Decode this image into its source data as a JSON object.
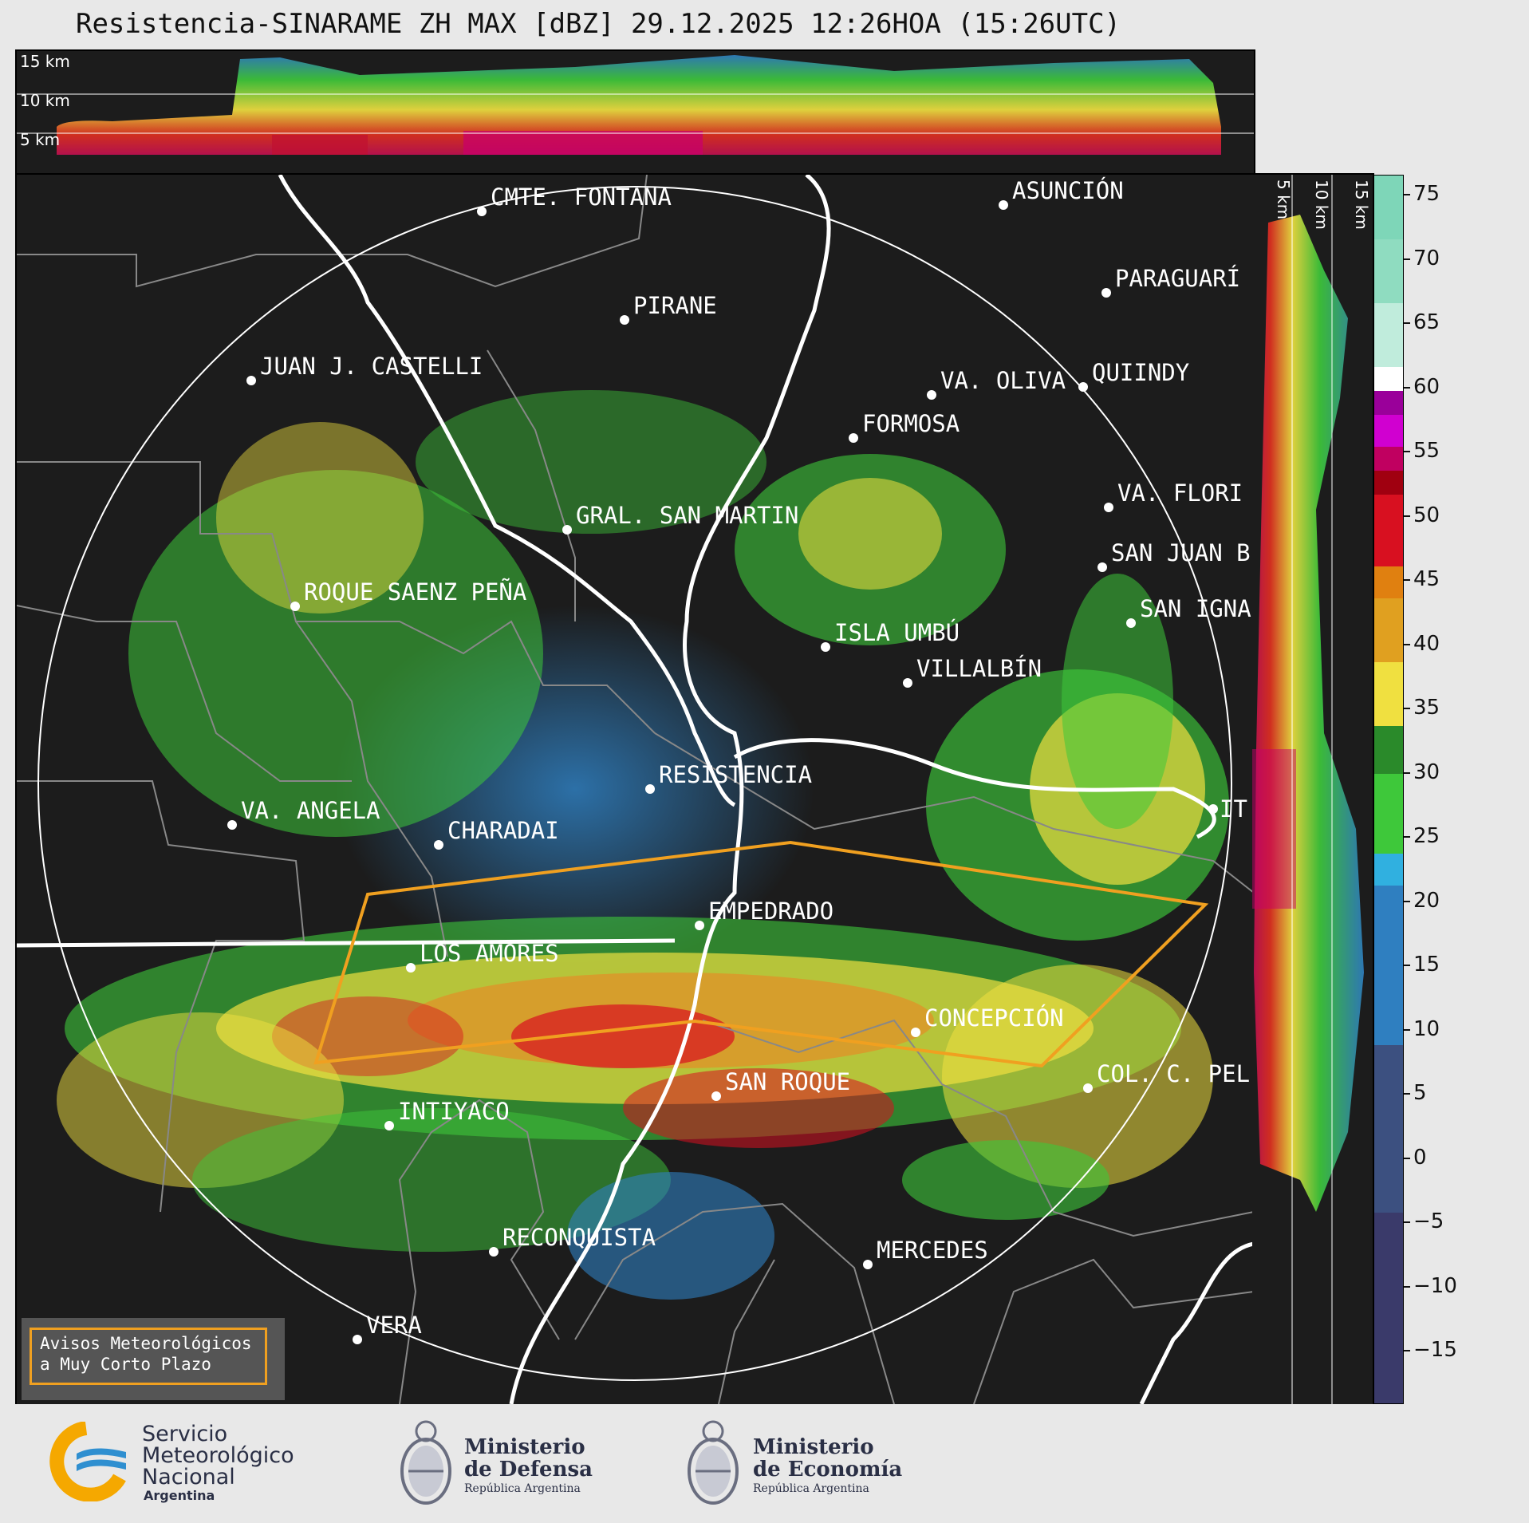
{
  "title": "Resistencia-SINARAME ZH MAX [dBZ] 29.12.2025 12:26HOA (15:26UTC)",
  "altitude_labels_top": [
    "15 km",
    "10 km",
    "5 km"
  ],
  "altitude_labels_right": [
    "5 km",
    "10 km",
    "15 km"
  ],
  "cities": [
    {
      "name": "CMTE. FONTANA"
    },
    {
      "name": "ASUNCIÓN"
    },
    {
      "name": "PARAGUARÍ"
    },
    {
      "name": "PIRANE"
    },
    {
      "name": "JUAN J. CASTELLI"
    },
    {
      "name": "QUIINDY"
    },
    {
      "name": "VA. OLIVA"
    },
    {
      "name": "FORMOSA"
    },
    {
      "name": "VA. FLORI"
    },
    {
      "name": "GRAL. SAN MARTIN"
    },
    {
      "name": "SAN JUAN B"
    },
    {
      "name": "ROQUE SAENZ PEÑA"
    },
    {
      "name": "SAN IGNA"
    },
    {
      "name": "ISLA UMBÚ"
    },
    {
      "name": "VILLALBÍN"
    },
    {
      "name": "RESISTENCIA"
    },
    {
      "name": "VA. ANGELA"
    },
    {
      "name": "CHARADAI"
    },
    {
      "name": "IT"
    },
    {
      "name": "EMPEDRADO"
    },
    {
      "name": "LOS AMORES"
    },
    {
      "name": "CONCEPCIÓN"
    },
    {
      "name": "SAN ROQUE"
    },
    {
      "name": "COL. C. PEL"
    },
    {
      "name": "INTIYACO"
    },
    {
      "name": "RECONQUISTA"
    },
    {
      "name": "MERCEDES"
    },
    {
      "name": "VERA"
    }
  ],
  "colorbar": {
    "unit": "dBZ",
    "ticks": [
      "75",
      "70",
      "65",
      "60",
      "55",
      "50",
      "45",
      "40",
      "35",
      "30",
      "25",
      "20",
      "15",
      "10",
      "5",
      "0",
      "−5",
      "−10",
      "−15"
    ],
    "colors": {
      "clear": "#1c1c1c",
      "weak": "#2f7fc0",
      "moderate": "#3ec83a",
      "strong": "#f0e040",
      "heavy": "#e03020",
      "extreme": "#d000d0"
    }
  },
  "notice": {
    "line1": "Avisos Meteorológicos",
    "line2": "a Muy Corto Plazo"
  },
  "footer": {
    "smn_line1": "Servicio",
    "smn_line2": "Meteorológico",
    "smn_line3": "Nacional",
    "smn_line4": "Argentina",
    "defensa_line1": "Ministerio",
    "defensa_line2": "de Defensa",
    "defensa_line3": "República Argentina",
    "economia_line1": "Ministerio",
    "economia_line2": "de Economía",
    "economia_line3": "República Argentina"
  }
}
